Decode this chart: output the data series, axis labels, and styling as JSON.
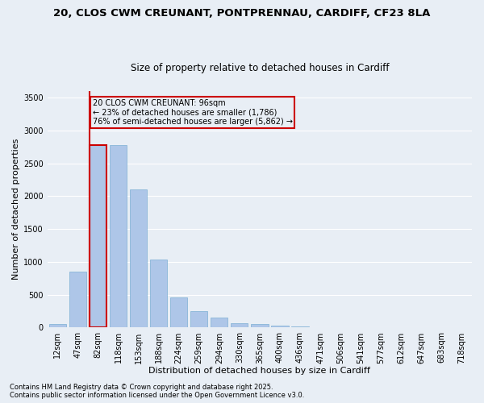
{
  "title1": "20, CLOS CWM CREUNANT, PONTPRENNAU, CARDIFF, CF23 8LA",
  "title2": "Size of property relative to detached houses in Cardiff",
  "xlabel": "Distribution of detached houses by size in Cardiff",
  "ylabel": "Number of detached properties",
  "categories": [
    "12sqm",
    "47sqm",
    "82sqm",
    "118sqm",
    "153sqm",
    "188sqm",
    "224sqm",
    "259sqm",
    "294sqm",
    "330sqm",
    "365sqm",
    "400sqm",
    "436sqm",
    "471sqm",
    "506sqm",
    "541sqm",
    "577sqm",
    "612sqm",
    "647sqm",
    "683sqm",
    "718sqm"
  ],
  "values": [
    50,
    850,
    2780,
    2780,
    2100,
    1040,
    460,
    250,
    155,
    70,
    55,
    30,
    15,
    10,
    5,
    3,
    2,
    1,
    1,
    1,
    1
  ],
  "bar_color": "#aec6e8",
  "bar_edge_color": "#7bafd4",
  "highlight_index": 2,
  "highlight_edge_color": "#cc0000",
  "vline_color": "#cc0000",
  "annotation_text": "20 CLOS CWM CREUNANT: 96sqm\n← 23% of detached houses are smaller (1,786)\n76% of semi-detached houses are larger (5,862) →",
  "annotation_box_color": "#cc0000",
  "ylim": [
    0,
    3600
  ],
  "yticks": [
    0,
    500,
    1000,
    1500,
    2000,
    2500,
    3000,
    3500
  ],
  "bg_color": "#e8eef5",
  "grid_color": "#ffffff",
  "footer1": "Contains HM Land Registry data © Crown copyright and database right 2025.",
  "footer2": "Contains public sector information licensed under the Open Government Licence v3.0.",
  "title_fontsize": 9.5,
  "subtitle_fontsize": 8.5,
  "axis_label_fontsize": 8,
  "tick_fontsize": 7,
  "annotation_fontsize": 7,
  "footer_fontsize": 6
}
